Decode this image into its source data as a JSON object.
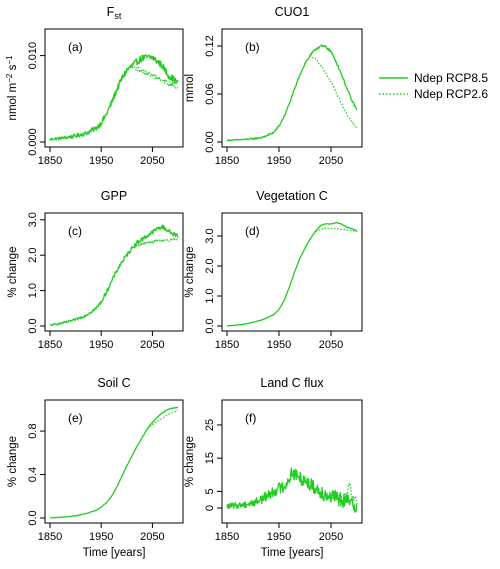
{
  "colors": {
    "series": "#22cc22",
    "axis": "#000000"
  },
  "legend": {
    "placement": "right",
    "entries": [
      {
        "label": "Ndep RCP8.5",
        "style": "solid"
      },
      {
        "label": "Ndep RCP2.6",
        "style": "dotted"
      }
    ]
  },
  "chart_data": [
    {
      "type": "line",
      "panel": "(a)",
      "title_main": "F",
      "title_sub": "st",
      "ylabel_parts": [
        "nmol m",
        "−2",
        " s",
        "−1"
      ],
      "xlim": [
        1850,
        2100
      ],
      "ylim": [
        0,
        0.0125
      ],
      "xticks": [
        1850,
        1950,
        2050
      ],
      "yticks": [
        0,
        0.01
      ],
      "ytick_labels": [
        "0.000",
        "0.010"
      ],
      "shared_until": 2010,
      "noise": 0.0004,
      "series": [
        {
          "name": "Ndep RCP8.5",
          "x": [
            1850,
            1880,
            1900,
            1920,
            1940,
            1950,
            1960,
            1970,
            1980,
            1990,
            2000,
            2010,
            2020,
            2030,
            2040,
            2050,
            2060,
            2070,
            2080,
            2090,
            2100
          ],
          "y": [
            0.0003,
            0.0005,
            0.0007,
            0.001,
            0.0016,
            0.0022,
            0.0032,
            0.0045,
            0.006,
            0.0073,
            0.0083,
            0.0088,
            0.0093,
            0.0097,
            0.0098,
            0.0098,
            0.0093,
            0.0088,
            0.0078,
            0.0073,
            0.0068
          ]
        },
        {
          "name": "Ndep RCP2.6",
          "x": [
            2010,
            2020,
            2030,
            2040,
            2050,
            2060,
            2070,
            2080,
            2090,
            2100
          ],
          "y": [
            0.0088,
            0.0085,
            0.0082,
            0.0079,
            0.0077,
            0.0074,
            0.0071,
            0.0068,
            0.0066,
            0.0062
          ]
        }
      ]
    },
    {
      "type": "line",
      "panel": "(b)",
      "title_main": "CUO1",
      "title_sub": "",
      "ylabel_parts": [
        "mmol"
      ],
      "xlim": [
        1850,
        2100
      ],
      "ylim": [
        0,
        0.135
      ],
      "xticks": [
        1850,
        1950,
        2050
      ],
      "yticks": [
        0,
        0.06,
        0.12
      ],
      "ytick_labels": [
        "0.00",
        "0.06",
        "0.12"
      ],
      "shared_until": 2010,
      "noise": 0.0015,
      "series": [
        {
          "name": "Ndep RCP8.5",
          "x": [
            1850,
            1880,
            1900,
            1920,
            1940,
            1950,
            1960,
            1970,
            1980,
            1990,
            2000,
            2010,
            2020,
            2030,
            2040,
            2050,
            2060,
            2070,
            2080,
            2090,
            2100
          ],
          "y": [
            0.002,
            0.003,
            0.004,
            0.006,
            0.012,
            0.02,
            0.032,
            0.048,
            0.066,
            0.084,
            0.098,
            0.108,
            0.116,
            0.12,
            0.119,
            0.113,
            0.1,
            0.085,
            0.068,
            0.052,
            0.04
          ]
        },
        {
          "name": "Ndep RCP2.6",
          "x": [
            2010,
            2020,
            2030,
            2040,
            2050,
            2060,
            2070,
            2080,
            2090,
            2100
          ],
          "y": [
            0.108,
            0.104,
            0.096,
            0.086,
            0.075,
            0.062,
            0.048,
            0.035,
            0.025,
            0.018
          ]
        }
      ]
    },
    {
      "type": "line",
      "panel": "(c)",
      "title_main": "GPP",
      "title_sub": "",
      "ylabel_parts": [
        "%  change"
      ],
      "xlim": [
        1850,
        2100
      ],
      "ylim": [
        0,
        3.05
      ],
      "xticks": [
        1850,
        1950,
        2050
      ],
      "yticks": [
        0,
        1,
        2,
        3
      ],
      "ytick_labels": [
        "0.0",
        "1.0",
        "2.0",
        "3.0"
      ],
      "shared_until": 2010,
      "noise": 0.06,
      "series": [
        {
          "name": "Ndep RCP8.5",
          "x": [
            1850,
            1880,
            1900,
            1920,
            1940,
            1950,
            1960,
            1970,
            1980,
            1990,
            2000,
            2010,
            2020,
            2030,
            2040,
            2050,
            2060,
            2070,
            2080,
            2090,
            2100
          ],
          "y": [
            0.02,
            0.1,
            0.18,
            0.3,
            0.5,
            0.68,
            0.95,
            1.25,
            1.55,
            1.8,
            2.0,
            2.2,
            2.35,
            2.45,
            2.55,
            2.65,
            2.75,
            2.8,
            2.7,
            2.6,
            2.55
          ]
        },
        {
          "name": "Ndep RCP2.6",
          "x": [
            2010,
            2020,
            2030,
            2040,
            2050,
            2060,
            2070,
            2080,
            2090,
            2100
          ],
          "y": [
            2.2,
            2.28,
            2.32,
            2.35,
            2.38,
            2.4,
            2.42,
            2.42,
            2.43,
            2.45
          ]
        }
      ]
    },
    {
      "type": "line",
      "panel": "(d)",
      "title_main": "Vegetation  C",
      "title_sub": "",
      "ylabel_parts": [
        "%  change"
      ],
      "xlim": [
        1850,
        2100
      ],
      "ylim": [
        0,
        3.6
      ],
      "xticks": [
        1850,
        1950,
        2050
      ],
      "yticks": [
        0,
        1,
        2,
        3
      ],
      "ytick_labels": [
        "0.0",
        "1.0",
        "2.0",
        "3.0"
      ],
      "shared_until": 2020,
      "noise": 0.01,
      "series": [
        {
          "name": "Ndep RCP8.5",
          "x": [
            1850,
            1880,
            1900,
            1920,
            1940,
            1950,
            1960,
            1970,
            1980,
            1990,
            2000,
            2010,
            2020,
            2030,
            2040,
            2050,
            2060,
            2070,
            2080,
            2090,
            2100
          ],
          "y": [
            0.0,
            0.05,
            0.12,
            0.22,
            0.38,
            0.55,
            0.85,
            1.3,
            1.8,
            2.25,
            2.6,
            2.9,
            3.15,
            3.35,
            3.4,
            3.4,
            3.45,
            3.4,
            3.3,
            3.25,
            3.15
          ]
        },
        {
          "name": "Ndep RCP2.6",
          "x": [
            2020,
            2030,
            2040,
            2050,
            2060,
            2070,
            2080,
            2090,
            2100
          ],
          "y": [
            3.15,
            3.22,
            3.25,
            3.25,
            3.25,
            3.22,
            3.2,
            3.18,
            3.15
          ]
        }
      ]
    },
    {
      "type": "line",
      "panel": "(e)",
      "title_main": "Soil  C",
      "title_sub": "",
      "ylabel_parts": [
        "%  change"
      ],
      "xlim": [
        1850,
        2100
      ],
      "ylim": [
        0,
        1.04
      ],
      "xticks": [
        1850,
        1950,
        2050
      ],
      "yticks": [
        0,
        0.4,
        0.8
      ],
      "ytick_labels": [
        "0.0",
        "0.4",
        "0.8"
      ],
      "shared_until": 2040,
      "noise": 0.003,
      "series": [
        {
          "name": "Ndep RCP8.5",
          "x": [
            1850,
            1880,
            1900,
            1920,
            1940,
            1950,
            1960,
            1970,
            1980,
            1990,
            2000,
            2010,
            2020,
            2030,
            2040,
            2050,
            2060,
            2070,
            2080,
            2090,
            2100
          ],
          "y": [
            0.0,
            0.01,
            0.02,
            0.04,
            0.07,
            0.1,
            0.14,
            0.2,
            0.28,
            0.38,
            0.48,
            0.57,
            0.66,
            0.74,
            0.82,
            0.88,
            0.93,
            0.97,
            1.0,
            1.01,
            1.02
          ]
        },
        {
          "name": "Ndep RCP2.6",
          "x": [
            2040,
            2050,
            2060,
            2070,
            2080,
            2090,
            2100
          ],
          "y": [
            0.82,
            0.86,
            0.89,
            0.92,
            0.95,
            0.97,
            0.99
          ]
        }
      ]
    },
    {
      "type": "line",
      "panel": "(f)",
      "title_main": "Land C flux",
      "title_sub": "",
      "ylabel_parts": [
        "%  change"
      ],
      "xlim": [
        1850,
        2100
      ],
      "ylim": [
        -3,
        31
      ],
      "xticks": [
        1850,
        1950,
        2050
      ],
      "yticks": [
        0,
        5,
        15,
        25
      ],
      "ytick_labels": [
        "0",
        "5",
        "15",
        "25"
      ],
      "shared_until": 2070,
      "noise": 2.2,
      "series": [
        {
          "name": "Ndep RCP8.5",
          "x": [
            1850,
            1880,
            1900,
            1920,
            1940,
            1950,
            1960,
            1965,
            1970,
            1975,
            1980,
            1990,
            2000,
            2010,
            2020,
            2030,
            2040,
            2050,
            2060,
            2070,
            2080,
            2090,
            2100
          ],
          "y": [
            0.5,
            1.0,
            1.5,
            3.0,
            5.0,
            6.0,
            6.5,
            7.5,
            9.0,
            11.0,
            10.0,
            9.0,
            8.5,
            7.0,
            6.0,
            5.0,
            4.0,
            3.5,
            3.0,
            2.5,
            2.0,
            1.5,
            0.5
          ]
        },
        {
          "name": "Ndep RCP2.6",
          "x": [
            2070,
            2080,
            2085,
            2090,
            2100
          ],
          "y": [
            2.5,
            3.5,
            8.0,
            3.0,
            2.0
          ]
        }
      ]
    }
  ]
}
